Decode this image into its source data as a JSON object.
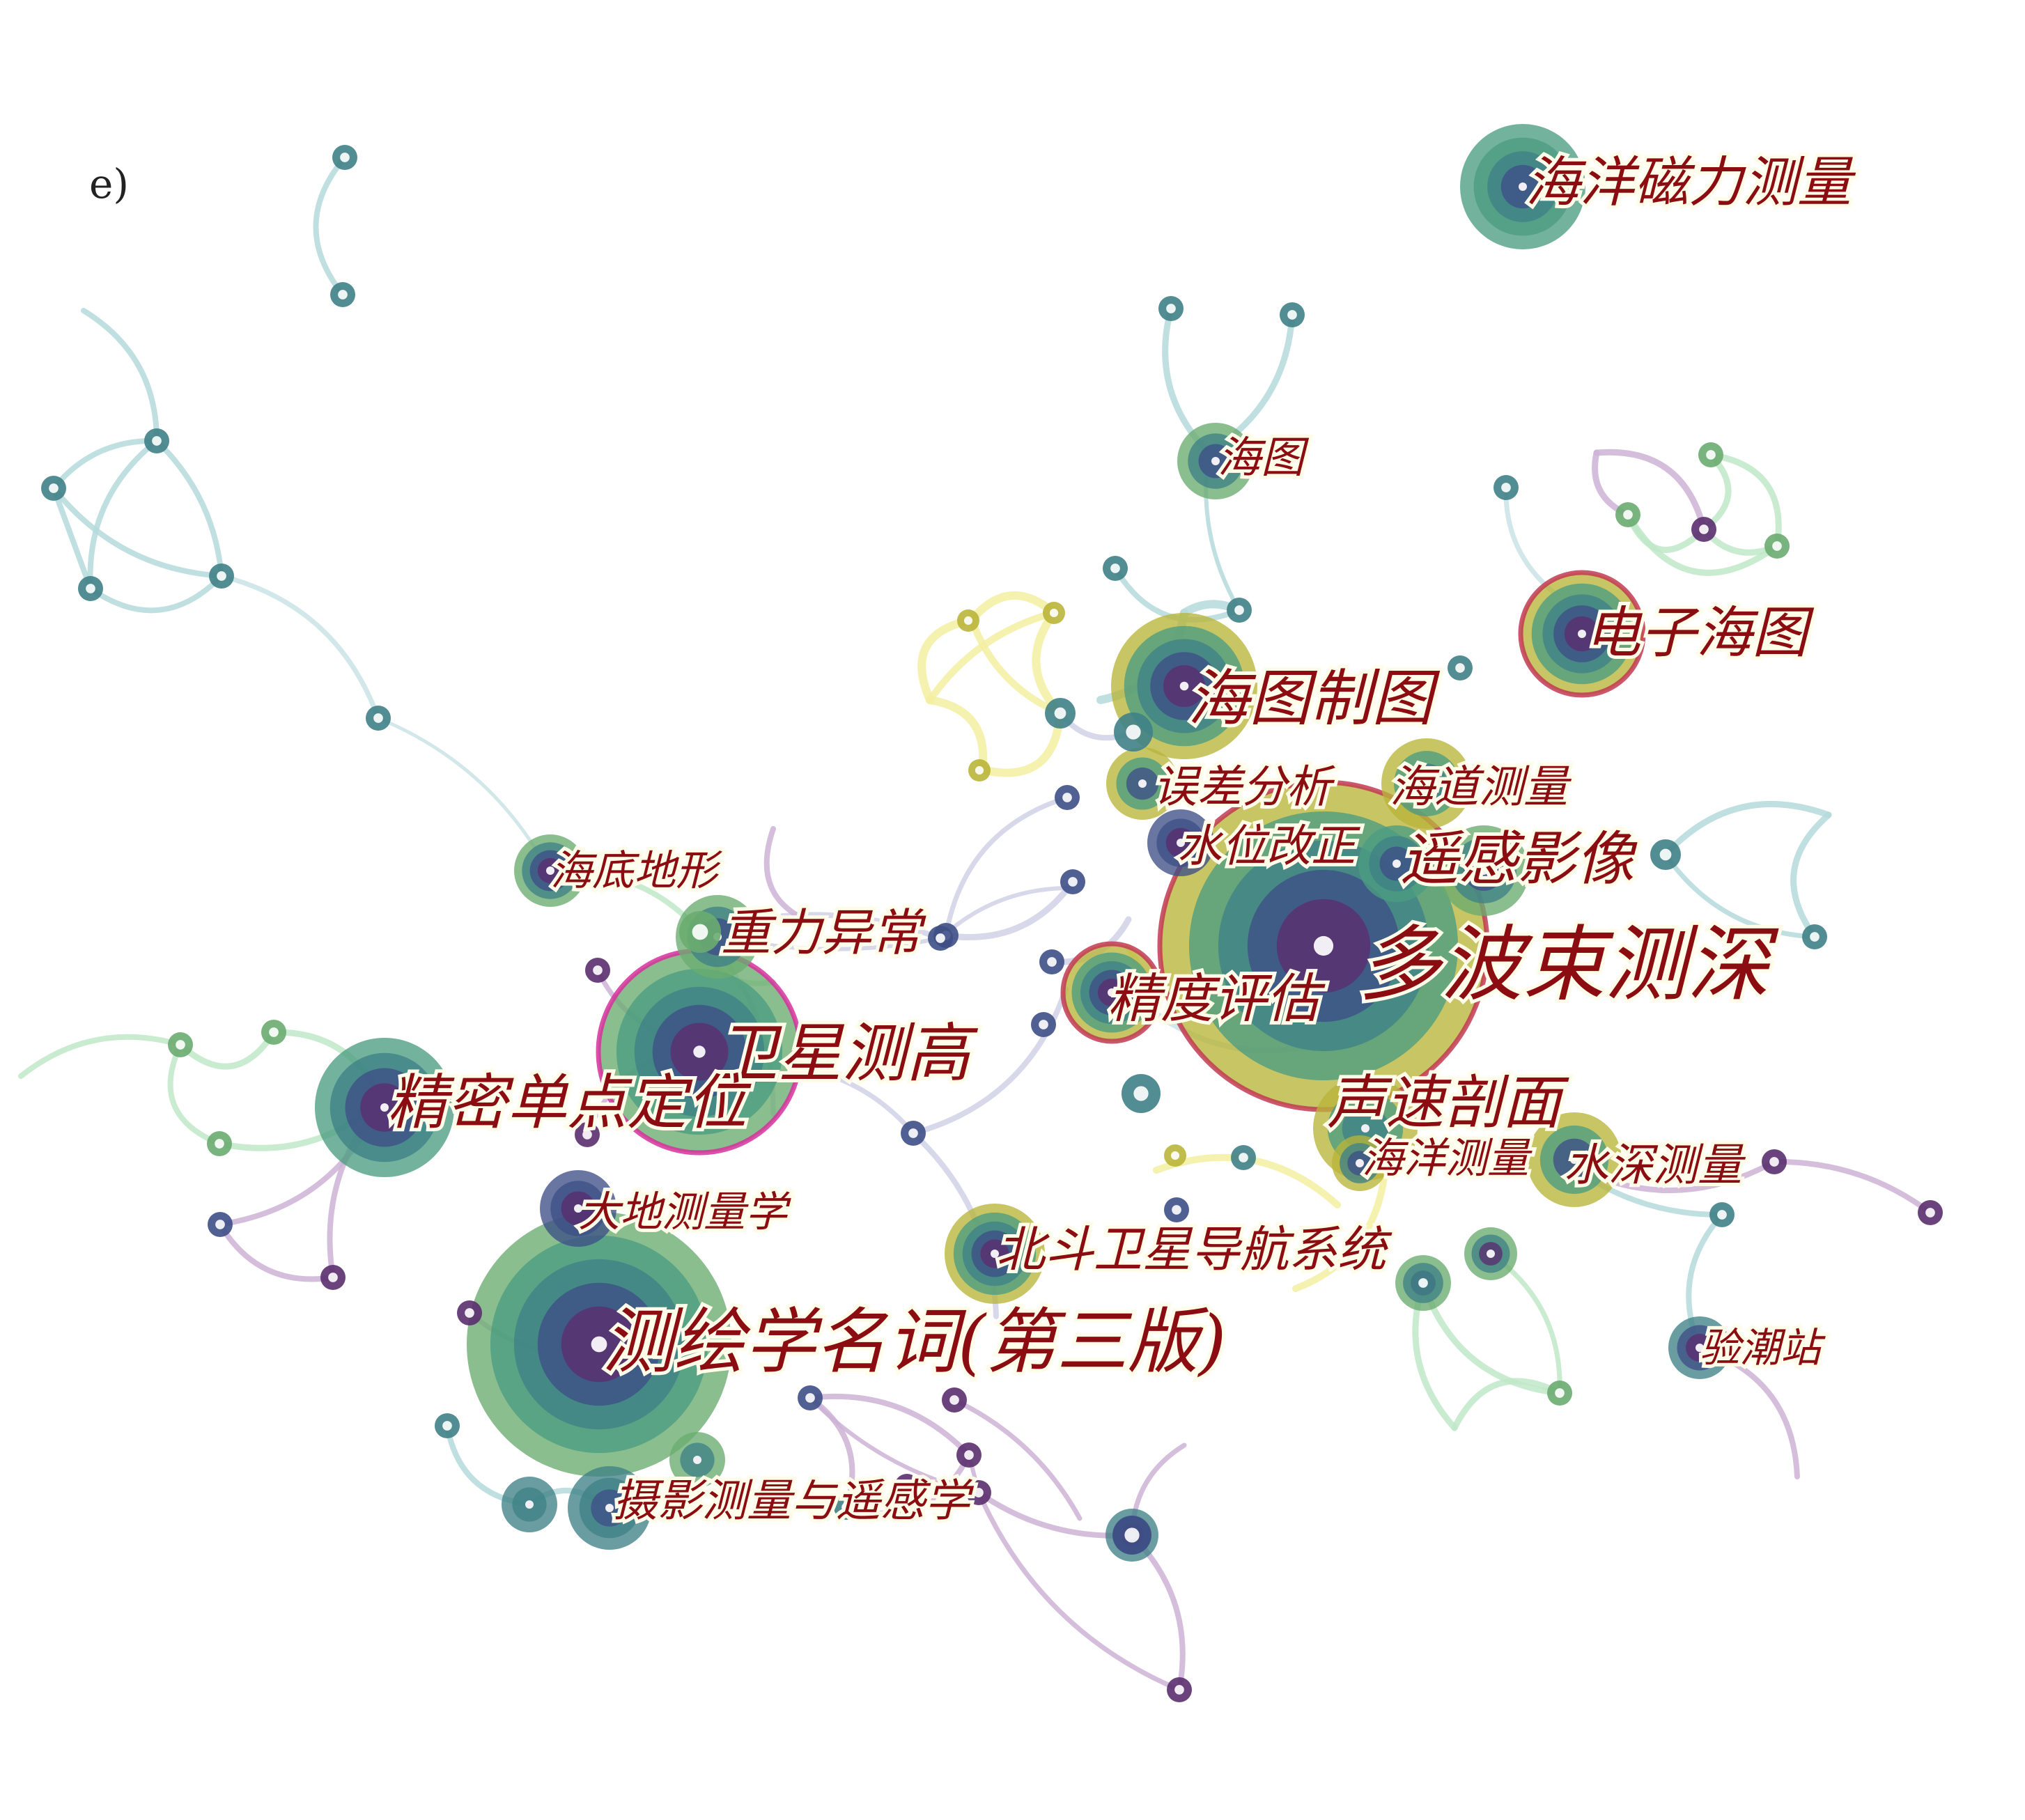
{
  "panel_tag": "e)",
  "palette": {
    "purple": "#5a2d6e",
    "navy": "#3e4f86",
    "teal": "#3f8187",
    "sea": "#4b9c82",
    "green": "#6aac70",
    "olive": "#b9b53a",
    "yellow": "#e8e07a",
    "burst_ring": "#c23a52",
    "hub_ring": "#d6309c",
    "label": "#8b0d12"
  },
  "keywords": [
    {
      "id": "k1",
      "label": "海洋磁力测量"
    },
    {
      "id": "k2",
      "label": "海图"
    },
    {
      "id": "k3",
      "label": "电子海图"
    },
    {
      "id": "k4",
      "label": "海图制图"
    },
    {
      "id": "k5",
      "label": "误差分析"
    },
    {
      "id": "k6",
      "label": "海道测量"
    },
    {
      "id": "k7",
      "label": "水位改正"
    },
    {
      "id": "k8",
      "label": "遥感影像"
    },
    {
      "id": "k9",
      "label": "多波束测深"
    },
    {
      "id": "k10",
      "label": "精度评估"
    },
    {
      "id": "k11",
      "label": "海底地形"
    },
    {
      "id": "k12",
      "label": "重力异常"
    },
    {
      "id": "k13",
      "label": "卫星测高"
    },
    {
      "id": "k14",
      "label": "精密单点定位"
    },
    {
      "id": "k15",
      "label": "声速剖面"
    },
    {
      "id": "k16",
      "label": "海洋测量"
    },
    {
      "id": "k17",
      "label": "水深测量"
    },
    {
      "id": "k18",
      "label": "大地测量学"
    },
    {
      "id": "k19",
      "label": "北斗卫星导航系统"
    },
    {
      "id": "k20",
      "label": "测绘学名词(第三版)"
    },
    {
      "id": "k21",
      "label": "验潮站"
    },
    {
      "id": "k22",
      "label": "摄影测量与遥感学"
    }
  ]
}
